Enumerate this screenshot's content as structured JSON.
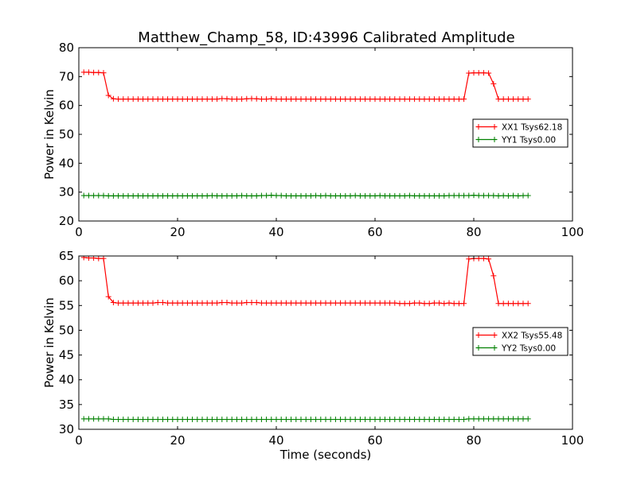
{
  "title": "Matthew_Champ_58, ID:43996 Calibrated Amplitude",
  "colors": {
    "xx": "#ff0000",
    "yy": "#008000",
    "axes": "#000000",
    "background": "#ffffff"
  },
  "chart_data": [
    {
      "type": "line",
      "title": "Matthew_Champ_58, ID:43996 Calibrated Amplitude",
      "xlabel": "",
      "ylabel": "Power in Kelvin",
      "xlim": [
        0,
        100
      ],
      "ylim": [
        20,
        80
      ],
      "xticks": [
        0,
        20,
        40,
        60,
        80,
        100
      ],
      "yticks": [
        20,
        30,
        40,
        50,
        60,
        70,
        80
      ],
      "grid": false,
      "legend": "center-right",
      "marker": "+",
      "x": [
        1,
        2,
        3,
        4,
        5,
        6,
        7,
        8,
        9,
        10,
        11,
        12,
        13,
        14,
        15,
        16,
        17,
        18,
        19,
        20,
        21,
        22,
        23,
        24,
        25,
        26,
        27,
        28,
        29,
        30,
        31,
        32,
        33,
        34,
        35,
        36,
        37,
        38,
        39,
        40,
        41,
        42,
        43,
        44,
        45,
        46,
        47,
        48,
        49,
        50,
        51,
        52,
        53,
        54,
        55,
        56,
        57,
        58,
        59,
        60,
        61,
        62,
        63,
        64,
        65,
        66,
        67,
        68,
        69,
        70,
        71,
        72,
        73,
        74,
        75,
        76,
        77,
        78,
        79,
        80,
        81,
        82,
        83,
        84,
        85,
        86,
        87,
        88,
        89,
        90,
        91
      ],
      "series": [
        {
          "name": "XX1 Tsys62.18",
          "color": "#ff0000",
          "values": [
            71.5,
            71.5,
            71.4,
            71.4,
            71.3,
            63.5,
            62.3,
            62.2,
            62.2,
            62.2,
            62.2,
            62.2,
            62.2,
            62.2,
            62.2,
            62.2,
            62.2,
            62.2,
            62.2,
            62.2,
            62.2,
            62.2,
            62.2,
            62.2,
            62.2,
            62.2,
            62.2,
            62.2,
            62.4,
            62.3,
            62.2,
            62.2,
            62.2,
            62.3,
            62.4,
            62.3,
            62.2,
            62.2,
            62.3,
            62.2,
            62.2,
            62.2,
            62.2,
            62.2,
            62.2,
            62.2,
            62.2,
            62.2,
            62.2,
            62.2,
            62.2,
            62.2,
            62.2,
            62.2,
            62.2,
            62.2,
            62.2,
            62.2,
            62.2,
            62.2,
            62.2,
            62.2,
            62.2,
            62.2,
            62.2,
            62.2,
            62.2,
            62.2,
            62.2,
            62.2,
            62.2,
            62.2,
            62.2,
            62.2,
            62.2,
            62.2,
            62.2,
            62.2,
            71.2,
            71.3,
            71.3,
            71.3,
            71.2,
            67.5,
            62.2,
            62.2,
            62.2,
            62.2,
            62.2,
            62.2,
            62.2
          ]
        },
        {
          "name": "YY1 Tsys0.00",
          "color": "#008000",
          "values": [
            28.8,
            28.8,
            28.8,
            28.8,
            28.8,
            28.7,
            28.7,
            28.7,
            28.7,
            28.7,
            28.7,
            28.7,
            28.7,
            28.7,
            28.7,
            28.7,
            28.7,
            28.7,
            28.7,
            28.7,
            28.7,
            28.7,
            28.7,
            28.7,
            28.7,
            28.7,
            28.8,
            28.7,
            28.7,
            28.7,
            28.7,
            28.7,
            28.8,
            28.7,
            28.7,
            28.7,
            28.8,
            28.8,
            28.9,
            28.8,
            28.8,
            28.7,
            28.7,
            28.7,
            28.7,
            28.7,
            28.7,
            28.8,
            28.7,
            28.8,
            28.7,
            28.7,
            28.7,
            28.7,
            28.7,
            28.8,
            28.7,
            28.7,
            28.7,
            28.7,
            28.8,
            28.7,
            28.7,
            28.7,
            28.7,
            28.7,
            28.8,
            28.7,
            28.7,
            28.7,
            28.7,
            28.7,
            28.7,
            28.7,
            28.8,
            28.8,
            28.8,
            28.8,
            28.8,
            28.9,
            28.8,
            28.8,
            28.8,
            28.8,
            28.7,
            28.8,
            28.7,
            28.8,
            28.7,
            28.8,
            28.8
          ]
        }
      ]
    },
    {
      "type": "line",
      "title": "",
      "xlabel": "Time (seconds)",
      "ylabel": "Power in Kelvin",
      "xlim": [
        0,
        100
      ],
      "ylim": [
        30,
        65
      ],
      "xticks": [
        0,
        20,
        40,
        60,
        80,
        100
      ],
      "yticks": [
        30,
        35,
        40,
        45,
        50,
        55,
        60,
        65
      ],
      "grid": false,
      "legend": "center-right",
      "marker": "+",
      "x": [
        1,
        2,
        3,
        4,
        5,
        6,
        7,
        8,
        9,
        10,
        11,
        12,
        13,
        14,
        15,
        16,
        17,
        18,
        19,
        20,
        21,
        22,
        23,
        24,
        25,
        26,
        27,
        28,
        29,
        30,
        31,
        32,
        33,
        34,
        35,
        36,
        37,
        38,
        39,
        40,
        41,
        42,
        43,
        44,
        45,
        46,
        47,
        48,
        49,
        50,
        51,
        52,
        53,
        54,
        55,
        56,
        57,
        58,
        59,
        60,
        61,
        62,
        63,
        64,
        65,
        66,
        67,
        68,
        69,
        70,
        71,
        72,
        73,
        74,
        75,
        76,
        77,
        78,
        79,
        80,
        81,
        82,
        83,
        84,
        85,
        86,
        87,
        88,
        89,
        90,
        91
      ],
      "series": [
        {
          "name": "XX2 Tsys55.48",
          "color": "#ff0000",
          "values": [
            64.7,
            64.6,
            64.6,
            64.5,
            64.5,
            56.8,
            55.6,
            55.5,
            55.5,
            55.5,
            55.5,
            55.5,
            55.5,
            55.5,
            55.5,
            55.6,
            55.6,
            55.5,
            55.5,
            55.5,
            55.5,
            55.5,
            55.5,
            55.5,
            55.5,
            55.5,
            55.5,
            55.5,
            55.6,
            55.6,
            55.5,
            55.5,
            55.5,
            55.6,
            55.6,
            55.6,
            55.5,
            55.5,
            55.5,
            55.5,
            55.5,
            55.5,
            55.5,
            55.5,
            55.5,
            55.5,
            55.5,
            55.5,
            55.5,
            55.5,
            55.5,
            55.5,
            55.5,
            55.5,
            55.5,
            55.5,
            55.5,
            55.5,
            55.5,
            55.5,
            55.5,
            55.5,
            55.5,
            55.5,
            55.4,
            55.4,
            55.4,
            55.5,
            55.5,
            55.4,
            55.4,
            55.5,
            55.5,
            55.4,
            55.5,
            55.4,
            55.4,
            55.4,
            64.4,
            64.5,
            64.5,
            64.5,
            64.4,
            61.0,
            55.4,
            55.4,
            55.4,
            55.4,
            55.4,
            55.4,
            55.4
          ]
        },
        {
          "name": "YY2 Tsys0.00",
          "color": "#008000",
          "values": [
            32.1,
            32.1,
            32.1,
            32.1,
            32.1,
            32.1,
            32.0,
            32.0,
            32.0,
            32.0,
            32.0,
            32.0,
            32.0,
            32.0,
            32.0,
            32.0,
            32.0,
            32.0,
            32.0,
            32.0,
            32.0,
            32.0,
            32.0,
            32.0,
            32.0,
            32.0,
            32.0,
            32.0,
            32.0,
            32.0,
            32.0,
            32.0,
            32.0,
            32.0,
            32.0,
            32.0,
            32.0,
            32.0,
            32.0,
            32.0,
            32.0,
            32.0,
            32.0,
            32.0,
            32.0,
            32.0,
            32.0,
            32.0,
            32.0,
            32.0,
            32.0,
            32.0,
            32.0,
            32.0,
            32.0,
            32.0,
            32.0,
            32.0,
            32.0,
            32.0,
            32.0,
            32.0,
            32.0,
            32.0,
            32.0,
            32.0,
            32.0,
            32.0,
            32.0,
            32.0,
            32.0,
            32.0,
            32.0,
            32.0,
            32.0,
            32.0,
            32.0,
            32.0,
            32.1,
            32.1,
            32.1,
            32.1,
            32.1,
            32.1,
            32.1,
            32.1,
            32.1,
            32.1,
            32.1,
            32.1,
            32.1
          ]
        }
      ]
    }
  ]
}
